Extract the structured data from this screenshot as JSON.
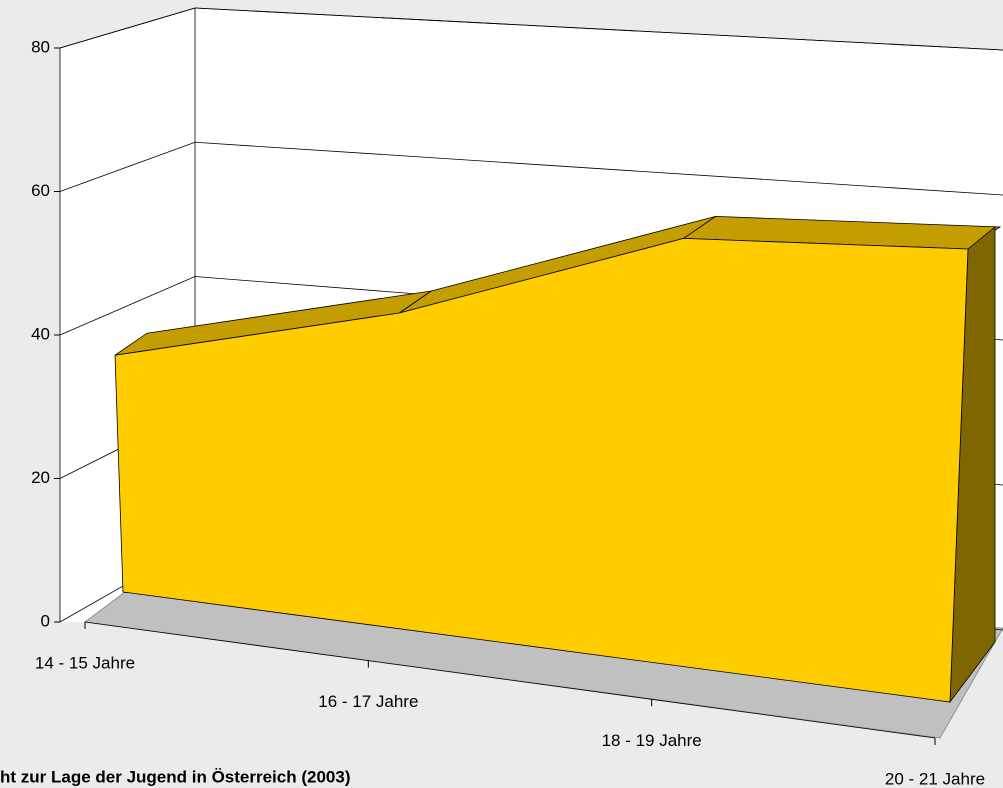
{
  "chart_data": {
    "type": "area3d",
    "title": "ht zur Lage der Jugend in Österreich (2003)",
    "categories": [
      "14 - 15 Jahre",
      "16 - 17 Jahre",
      "18 - 19 Jahre",
      "20 - 21 Jahre"
    ],
    "values": [
      37,
      45,
      56,
      55
    ],
    "color": "#ffcc00",
    "ylim": [
      0,
      80
    ],
    "yticks": [
      0,
      20,
      40,
      60,
      80
    ],
    "grid": true
  }
}
